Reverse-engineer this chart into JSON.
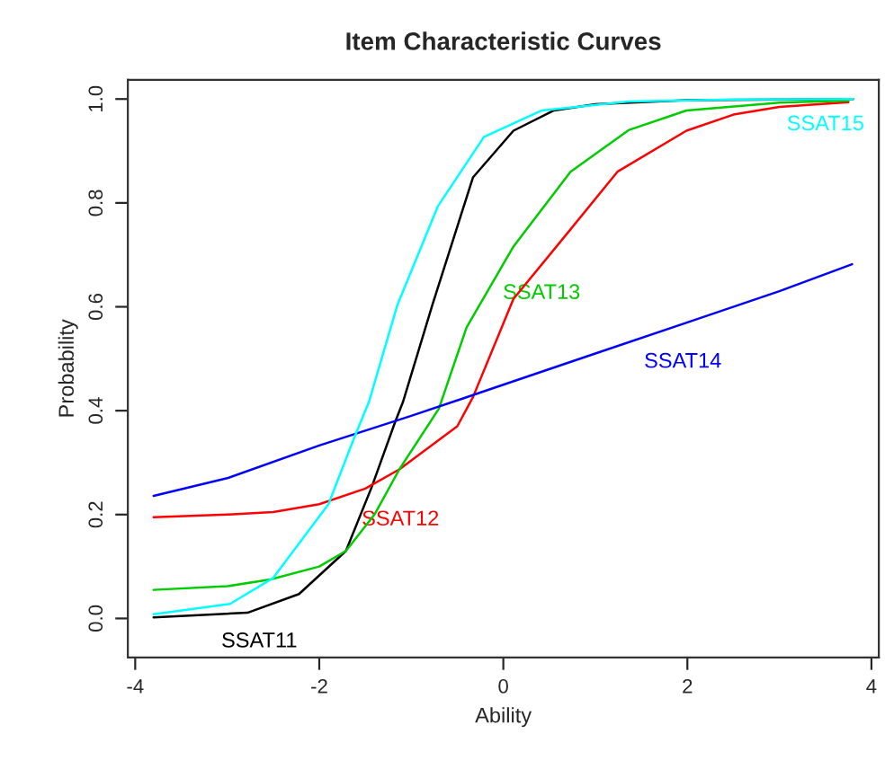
{
  "chart_data": {
    "type": "line",
    "title": "Item Characteristic Curves",
    "xlabel": "Ability",
    "ylabel": "Probability",
    "xlim": [
      -4.08,
      4.08
    ],
    "ylim": [
      -0.075,
      1.037
    ],
    "xticks": [
      -4,
      -2,
      0,
      2,
      4
    ],
    "yticks": [
      {
        "value": 0,
        "label": "0.0"
      },
      {
        "value": 0.2,
        "label": "0.2"
      },
      {
        "value": 0.4,
        "label": "0.4"
      },
      {
        "value": 0.6,
        "label": "0.6"
      },
      {
        "value": 0.8,
        "label": "0.8"
      },
      {
        "value": 1,
        "label": "1.0"
      }
    ],
    "grid": false,
    "legend": false,
    "line_style": "solid",
    "marker": "none",
    "series": [
      {
        "name": "SSAT11",
        "color": "#000000",
        "x": [
          -3.8,
          -2.78,
          -2.22,
          -1.71,
          -1.43,
          -1.18,
          -1.09,
          -0.77,
          -0.33,
          0.11,
          0.55,
          1.0,
          2.0,
          3.8
        ],
        "values": [
          0.002,
          0.011,
          0.047,
          0.13,
          0.253,
          0.376,
          0.417,
          0.604,
          0.849,
          0.939,
          0.978,
          0.99,
          0.998,
          1.0
        ]
      },
      {
        "name": "SSAT12",
        "color": "#ff0000",
        "x": [
          -3.8,
          -3,
          -2.5,
          -2,
          -1.5,
          -1.13,
          -0.5,
          -0.33,
          0.11,
          0.73,
          1.24,
          1.99,
          2.5,
          3,
          3.75
        ],
        "values": [
          0.195,
          0.2,
          0.205,
          0.22,
          0.25,
          0.287,
          0.37,
          0.426,
          0.615,
          0.749,
          0.86,
          0.939,
          0.97,
          0.985,
          0.994
        ]
      },
      {
        "name": "SSAT13",
        "color": "#00cc00",
        "x": [
          -3.8,
          -3,
          -2.53,
          -2,
          -1.71,
          -1.4,
          -1.13,
          -0.7,
          -0.4,
          0.11,
          0.73,
          1.36,
          1.99,
          3,
          3.75
        ],
        "values": [
          0.055,
          0.062,
          0.075,
          0.1,
          0.13,
          0.2,
          0.287,
          0.404,
          0.56,
          0.716,
          0.86,
          0.94,
          0.978,
          0.993,
          0.997
        ]
      },
      {
        "name": "SSAT14",
        "color": "#0000ff",
        "x": [
          -3.8,
          -3,
          -2,
          -1,
          -0.33,
          0,
          1,
          2,
          3,
          3.79
        ],
        "values": [
          0.236,
          0.27,
          0.333,
          0.39,
          0.43,
          0.45,
          0.51,
          0.57,
          0.63,
          0.682
        ]
      },
      {
        "name": "SSAT15",
        "color": "#00ffff",
        "x": [
          -3.8,
          -2.97,
          -2.5,
          -1.9,
          -1.62,
          -1.46,
          -1.15,
          -0.71,
          -0.21,
          0.42,
          1.36,
          2.5,
          3.8
        ],
        "values": [
          0.008,
          0.028,
          0.078,
          0.22,
          0.348,
          0.417,
          0.604,
          0.794,
          0.927,
          0.978,
          0.995,
          0.999,
          1.0
        ]
      }
    ]
  }
}
